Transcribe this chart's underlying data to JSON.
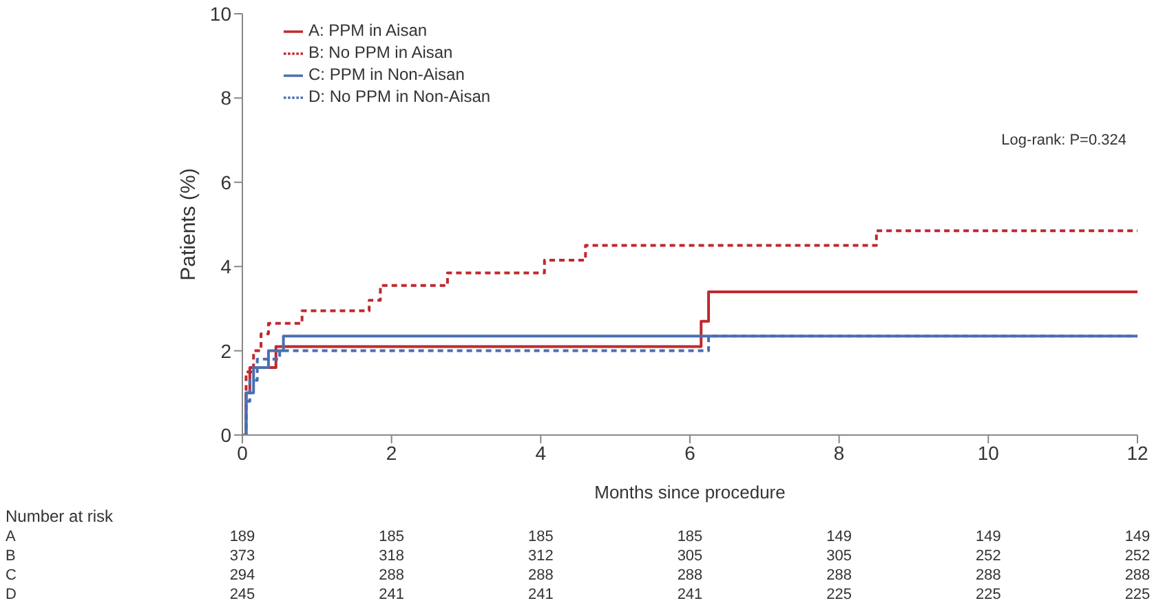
{
  "chart_data": {
    "type": "step",
    "xlabel": "Months since procedure",
    "ylabel": "Patients (%)",
    "xlim": [
      0,
      12
    ],
    "xticks": [
      0,
      2,
      4,
      6,
      8,
      10,
      12
    ],
    "ylim": [
      0,
      10
    ],
    "yticks": [
      0,
      2,
      4,
      6,
      8,
      10
    ],
    "grid": false,
    "legend": "top left",
    "marker": "none",
    "series": [
      {
        "name": "A: PPM in Aisan",
        "color": "#c0282d",
        "line_style": "solid",
        "x": [
          0,
          0.05,
          0.1,
          0.45,
          6.15,
          6.25,
          12
        ],
        "values": [
          0,
          1.0,
          1.6,
          2.1,
          2.7,
          3.4,
          3.4
        ]
      },
      {
        "name": "B: No PPM in Aisan",
        "color": "#c0282d",
        "line_style": "dashed",
        "x": [
          0,
          0.05,
          0.15,
          0.25,
          0.35,
          0.8,
          1.7,
          1.85,
          2.75,
          4.05,
          4.6,
          8.5,
          12
        ],
        "values": [
          0,
          1.5,
          2.0,
          2.4,
          2.65,
          2.95,
          3.2,
          3.55,
          3.85,
          4.15,
          4.5,
          4.85,
          4.85
        ]
      },
      {
        "name": "C: PPM in Non-Aisan",
        "color": "#4a6fb0",
        "line_style": "solid",
        "x": [
          0,
          0.05,
          0.15,
          0.35,
          0.55,
          12
        ],
        "values": [
          0,
          1.0,
          1.6,
          2.0,
          2.35,
          2.35
        ]
      },
      {
        "name": "D: No PPM in Non-Aisan",
        "color": "#4a6fb0",
        "line_style": "dashed",
        "x": [
          0,
          0.05,
          0.1,
          0.2,
          0.5,
          6.25,
          12
        ],
        "values": [
          0,
          0.8,
          1.3,
          1.8,
          2.0,
          2.35,
          2.35
        ]
      }
    ],
    "annotations": [
      "Log-rank: P=0.324",
      "Number at risk",
      "A 189 185 185 185 149 149 149",
      "B 373 318 312 305 305 252 252",
      "C 294 288 288 288 288 288 288",
      "D 245 241 241 241 225 225 225"
    ]
  }
}
